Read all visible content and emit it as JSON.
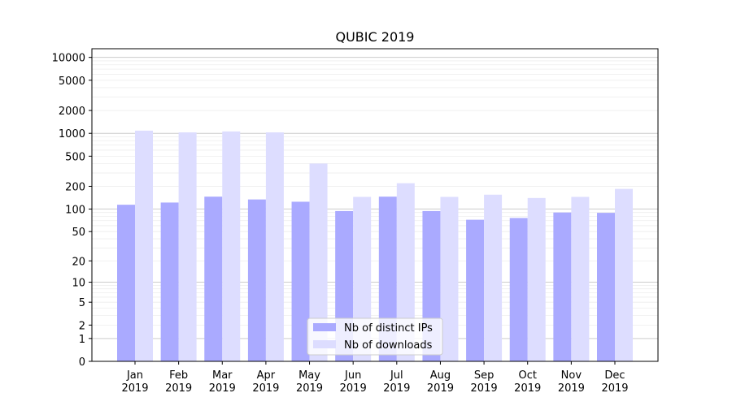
{
  "chart_data": {
    "type": "bar",
    "title": "QUBIC 2019",
    "xlabel": "",
    "ylabel": "",
    "categories": [
      [
        "Jan",
        "2019"
      ],
      [
        "Feb",
        "2019"
      ],
      [
        "Mar",
        "2019"
      ],
      [
        "Apr",
        "2019"
      ],
      [
        "May",
        "2019"
      ],
      [
        "Jun",
        "2019"
      ],
      [
        "Jul",
        "2019"
      ],
      [
        "Aug",
        "2019"
      ],
      [
        "Sep",
        "2019"
      ],
      [
        "Oct",
        "2019"
      ],
      [
        "Nov",
        "2019"
      ],
      [
        "Dec",
        "2019"
      ]
    ],
    "series": [
      {
        "name": "Nb of distinct IPs",
        "color": "#aaaaff",
        "values": [
          114,
          122,
          146,
          134,
          125,
          94,
          146,
          94,
          72,
          76,
          90,
          89
        ]
      },
      {
        "name": "Nb of downloads",
        "color": "#ddddff",
        "values": [
          1085,
          1030,
          1060,
          1030,
          400,
          145,
          220,
          145,
          155,
          140,
          145,
          185
        ]
      }
    ],
    "y_scale": "symlog",
    "ylim": [
      0,
      13000
    ],
    "y_ticks": [
      0,
      1,
      2,
      5,
      10,
      20,
      50,
      100,
      200,
      500,
      1000,
      2000,
      5000,
      10000
    ],
    "grid": true,
    "legend_position": "lower center"
  }
}
